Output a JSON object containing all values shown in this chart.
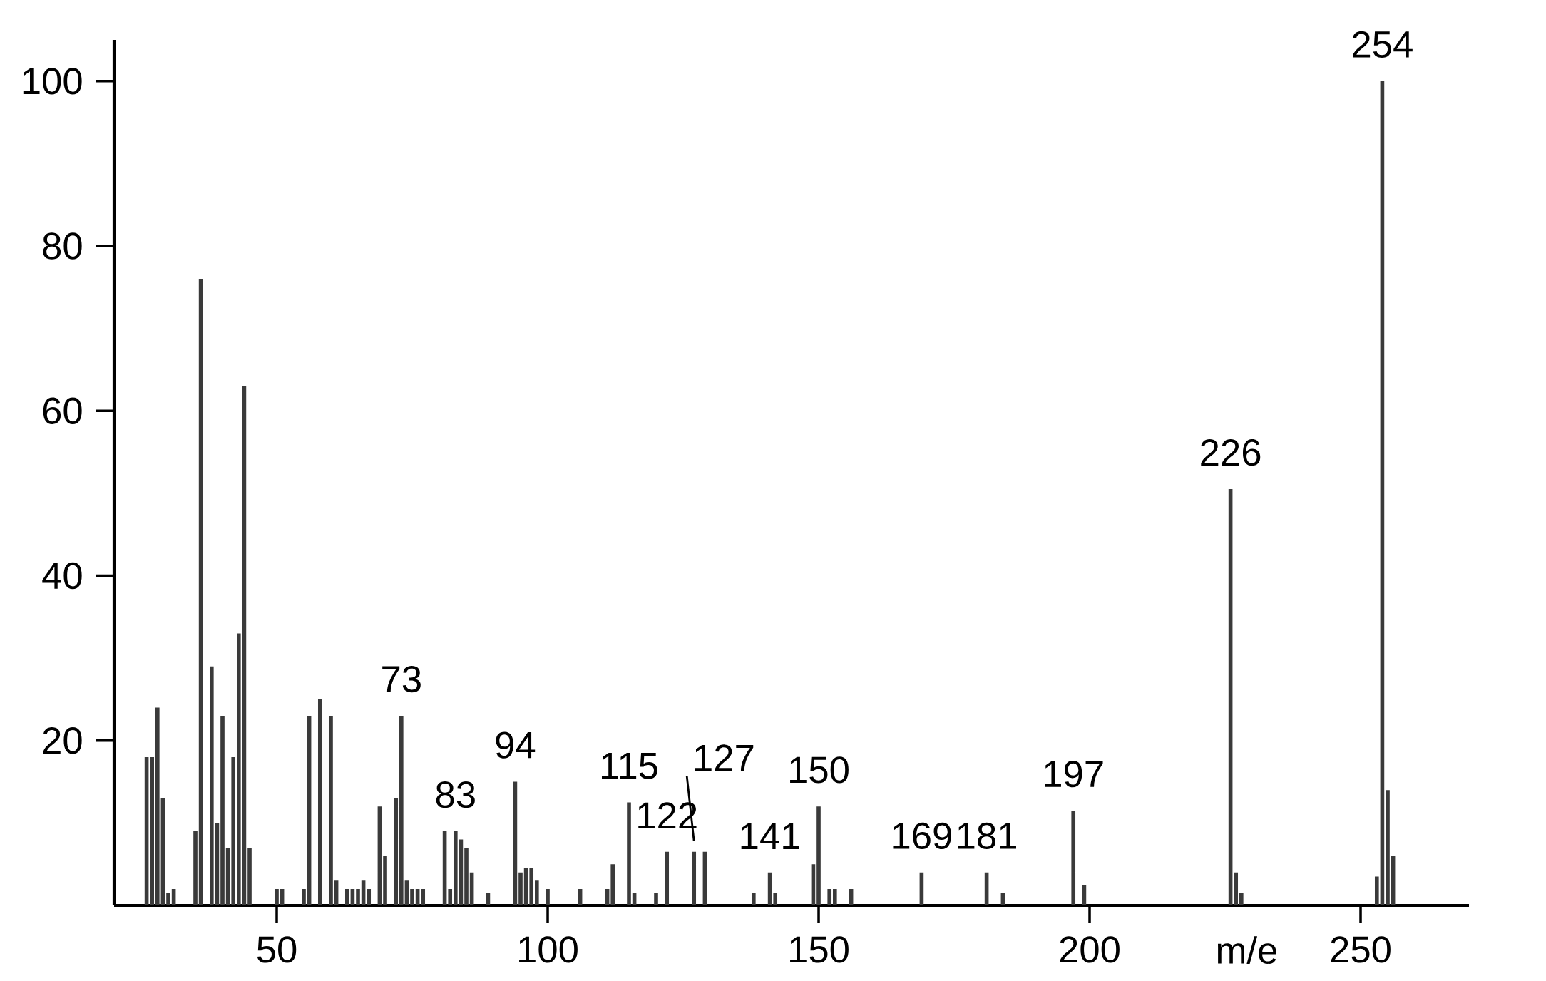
{
  "chart_data": {
    "type": "bar",
    "xlabel": "m/e",
    "color": "#3a3a3a",
    "x": [
      26,
      27,
      28,
      29,
      30,
      31,
      35,
      36,
      38,
      39,
      40,
      41,
      42,
      43,
      44,
      45,
      50,
      51,
      55,
      56,
      58,
      60,
      61,
      63,
      64,
      65,
      66,
      67,
      69,
      70,
      72,
      73,
      74,
      75,
      76,
      77,
      81,
      82,
      83,
      84,
      85,
      86,
      89,
      94,
      95,
      96,
      97,
      98,
      100,
      106,
      111,
      112,
      115,
      116,
      120,
      122,
      127,
      129,
      138,
      141,
      142,
      149,
      150,
      152,
      153,
      156,
      169,
      181,
      184,
      197,
      199,
      226,
      227,
      228,
      253,
      254,
      255,
      256
    ],
    "values": [
      18,
      18,
      24,
      13,
      1.5,
      2,
      9,
      76,
      29,
      10,
      23,
      7,
      18,
      33,
      63,
      7,
      2,
      2,
      2,
      23,
      25,
      23,
      3,
      2,
      2,
      2,
      3,
      2,
      12,
      6,
      13,
      23,
      3,
      2,
      2,
      2,
      9,
      2,
      9,
      8,
      7,
      4,
      1.5,
      15,
      4,
      4.5,
      4.5,
      3,
      2,
      2,
      2,
      5,
      12.5,
      1.5,
      1.5,
      6.5,
      6.5,
      6.5,
      1.5,
      4,
      1.5,
      5,
      12,
      2,
      2,
      2,
      4,
      4,
      1.5,
      11.5,
      2.5,
      50.5,
      4,
      1.5,
      3.5,
      100,
      14,
      6
    ],
    "xlim": [
      20,
      270
    ],
    "ylim": [
      0,
      105
    ],
    "xticks": [
      50,
      100,
      150,
      200,
      250
    ],
    "yticks": [
      20,
      40,
      60,
      80,
      100
    ],
    "annotations": [
      {
        "text": "73",
        "x": 73,
        "y": 23
      },
      {
        "text": "83",
        "x": 83,
        "y": 9
      },
      {
        "text": "94",
        "x": 94,
        "y": 15
      },
      {
        "text": "115",
        "x": 115,
        "y": 12.5
      },
      {
        "text": "122",
        "x": 122,
        "y": 6.5
      },
      {
        "text": "127",
        "x": 127,
        "y": 6.5
      },
      {
        "text": "141",
        "x": 141,
        "y": 4
      },
      {
        "text": "150",
        "x": 150,
        "y": 12
      },
      {
        "text": "169",
        "x": 169,
        "y": 4
      },
      {
        "text": "181",
        "x": 181,
        "y": 4
      },
      {
        "text": "197",
        "x": 197,
        "y": 11.5
      },
      {
        "text": "226",
        "x": 226,
        "y": 50.5
      },
      {
        "text": "254",
        "x": 254,
        "y": 100
      }
    ]
  }
}
